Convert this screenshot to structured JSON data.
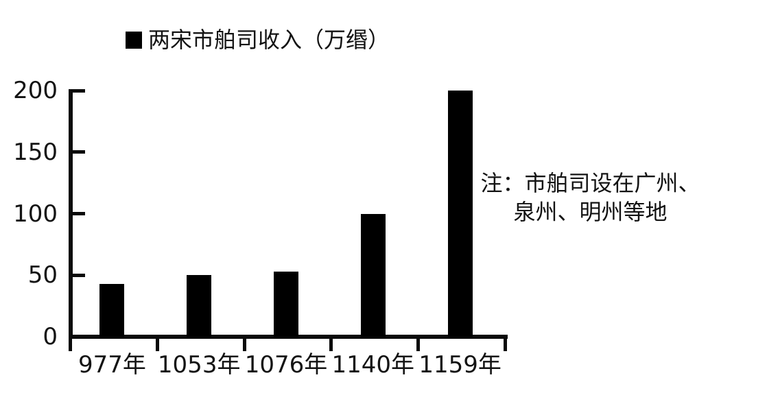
{
  "legend": {
    "label": "两宋市舶司收入（万缗）",
    "swatch_color": "#000000"
  },
  "note": {
    "line1": "注：市舶司设在广州、",
    "line2": "泉州、明州等地"
  },
  "chart_data": {
    "type": "bar",
    "title": "",
    "categories": [
      "977年",
      "1053年",
      "1076年",
      "1140年",
      "1159年"
    ],
    "values": [
      43,
      50,
      53,
      100,
      200
    ],
    "series_label": "两宋市舶司收入（万缗）",
    "xlabel": "",
    "ylabel": "",
    "yticks": [
      0,
      50,
      100,
      150,
      200
    ],
    "ylim": [
      0,
      200
    ],
    "bar_color": "#000000",
    "axis_color": "#0a0a0a",
    "grid": false,
    "legend_position": "top-left",
    "annotation": "注：市舶司设在广州、泉州、明州等地"
  }
}
